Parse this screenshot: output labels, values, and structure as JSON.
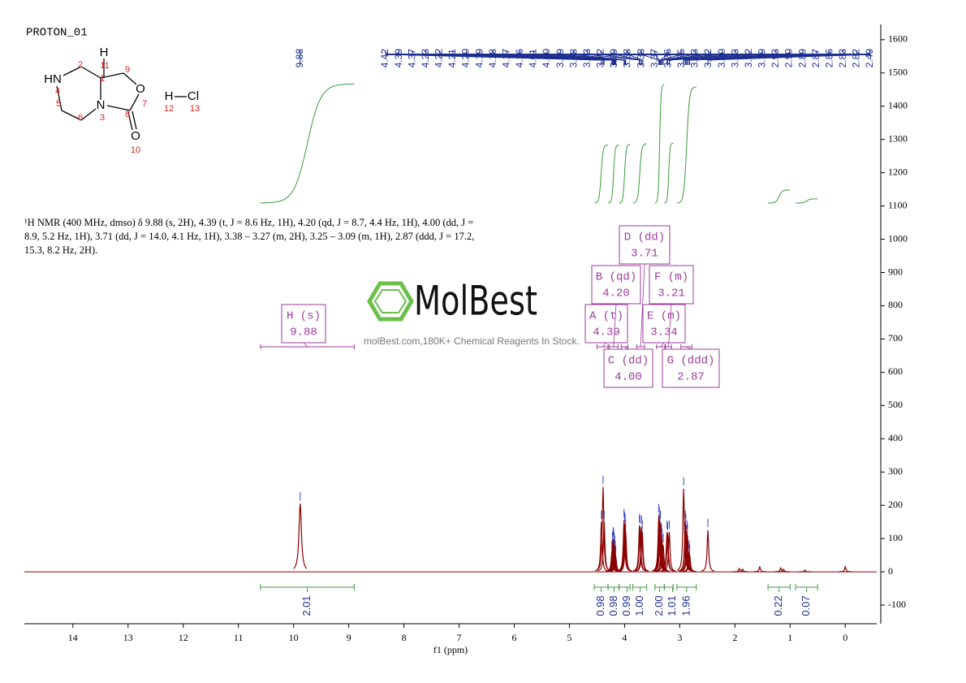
{
  "chart_data": {
    "type": "spectrum",
    "title": "PROTON_01",
    "xlabel": "f1 (ppm)",
    "xlim": [
      14.88,
      -0.57
    ],
    "xticks": [
      14,
      13,
      12,
      11,
      10,
      9,
      8,
      7,
      6,
      5,
      4,
      3,
      2,
      1,
      0
    ],
    "ylim": [
      -156,
      1646
    ],
    "yticks": [
      -100,
      0,
      100,
      200,
      300,
      400,
      500,
      600,
      700,
      800,
      900,
      1000,
      1100,
      1200,
      1300,
      1400,
      1500,
      1600
    ],
    "color": "#8b0000",
    "peaks": {
      "ppm": [
        9.88,
        4.42,
        4.39,
        4.37,
        4.23,
        4.22,
        4.21,
        4.2,
        4.19,
        4.18,
        4.17,
        4.16,
        4.01,
        4.0,
        3.99,
        3.98,
        3.73,
        3.72,
        3.69,
        3.68,
        3.38,
        3.37,
        3.36,
        3.35,
        3.33,
        3.32,
        3.3,
        3.23,
        3.22,
        3.19,
        2.93,
        2.9,
        2.89,
        2.87,
        2.86,
        2.83,
        2.82,
        2.49
      ],
      "heights": [
        205,
        150,
        255,
        150,
        60,
        85,
        95,
        100,
        85,
        75,
        60,
        45,
        155,
        145,
        140,
        120,
        140,
        135,
        135,
        120,
        170,
        160,
        140,
        150,
        110,
        95,
        80,
        120,
        115,
        120,
        250,
        150,
        140,
        120,
        110,
        60,
        50,
        125
      ],
      "labels": [
        "9.88",
        "4.42",
        "4.39",
        "4.37",
        "4.23",
        "4.22",
        "4.21",
        "4.20",
        "4.19",
        "4.18",
        "4.17",
        "4.16",
        "4.01",
        "4.00",
        "3.99",
        "3.98",
        "3.73",
        "3.72",
        "3.69",
        "3.68",
        "3.38",
        "3.37",
        "3.36",
        "3.35",
        "3.33",
        "3.32",
        "3.30",
        "3.23",
        "3.22",
        "3.19",
        "2.93",
        "2.90",
        "2.89",
        "2.87",
        "2.86",
        "2.83",
        "2.82",
        "2.49"
      ],
      "label_color": "#1f2f8f"
    },
    "minor_peaks": {
      "ppm": [
        1.92,
        1.86,
        1.55,
        1.17,
        1.12,
        0.73,
        0.0
      ],
      "heights": [
        10,
        8,
        15,
        12,
        8,
        5,
        15
      ]
    },
    "integrals": {
      "ranges": [
        [
          10.6,
          8.9
        ],
        [
          4.55,
          4.3
        ],
        [
          4.3,
          4.1
        ],
        [
          4.1,
          3.9
        ],
        [
          3.85,
          3.6
        ],
        [
          3.45,
          3.28
        ],
        [
          3.28,
          3.12
        ],
        [
          3.05,
          2.7
        ],
        [
          1.4,
          1.0
        ],
        [
          0.9,
          0.5
        ]
      ],
      "values": [
        2.01,
        0.98,
        0.98,
        0.99,
        1.0,
        2.0,
        1.01,
        1.96,
        0.22,
        0.07
      ],
      "value_labels": [
        "2.01",
        "0.98",
        "0.98",
        "0.99",
        "1.00",
        "2.00",
        "1.01",
        "1.96",
        "0.22",
        "0.07"
      ],
      "color": "#3c9a3c"
    },
    "multiplets": {
      "names": [
        "H (s)",
        "A (t)",
        "B (qd)",
        "C (dd)",
        "D (dd)",
        "E (m)",
        "F (m)",
        "G (ddd)"
      ],
      "shifts": [
        9.88,
        4.39,
        4.2,
        4.0,
        3.71,
        3.34,
        3.21,
        2.87
      ],
      "shift_labels": [
        "9.88",
        "4.39",
        "4.20",
        "4.00",
        "3.71",
        "3.34",
        "3.21",
        "2.87"
      ],
      "ranges": [
        [
          10.6,
          8.9
        ],
        [
          4.5,
          4.3
        ],
        [
          4.28,
          4.12
        ],
        [
          4.06,
          3.94
        ],
        [
          3.78,
          3.64
        ],
        [
          3.42,
          3.27
        ],
        [
          3.26,
          3.15
        ],
        [
          2.98,
          2.78
        ]
      ],
      "color": "#9b3c9b"
    },
    "description": "¹H NMR (400 MHz, dmso) δ 9.88 (s, 2H), 4.39 (t, J = 8.6 Hz, 1H), 4.20 (qd, J = 8.7, 4.4 Hz, 1H), 4.00 (dd, J = 8.9, 5.2 Hz, 1H), 3.71 (dd, J = 14.0, 4.1 Hz, 1H), 3.38 – 3.27 (m, 2H), 3.25 – 3.09 (m, 1H), 2.87 (ddd, J = 17.2, 15.3, 8.2 Hz, 2H).",
    "structure": {
      "atoms": [
        "H",
        "HN",
        "N",
        "O",
        "O",
        "H",
        "Cl"
      ],
      "numbers": [
        "11",
        "2",
        "1",
        "9",
        "4",
        "7",
        "5",
        "3",
        "6",
        "8",
        "10",
        "12",
        "13"
      ]
    },
    "watermark": {
      "brand": "MolBest",
      "tagline": "molBest.com,180K+ Chemical Reagents In Stock."
    }
  }
}
